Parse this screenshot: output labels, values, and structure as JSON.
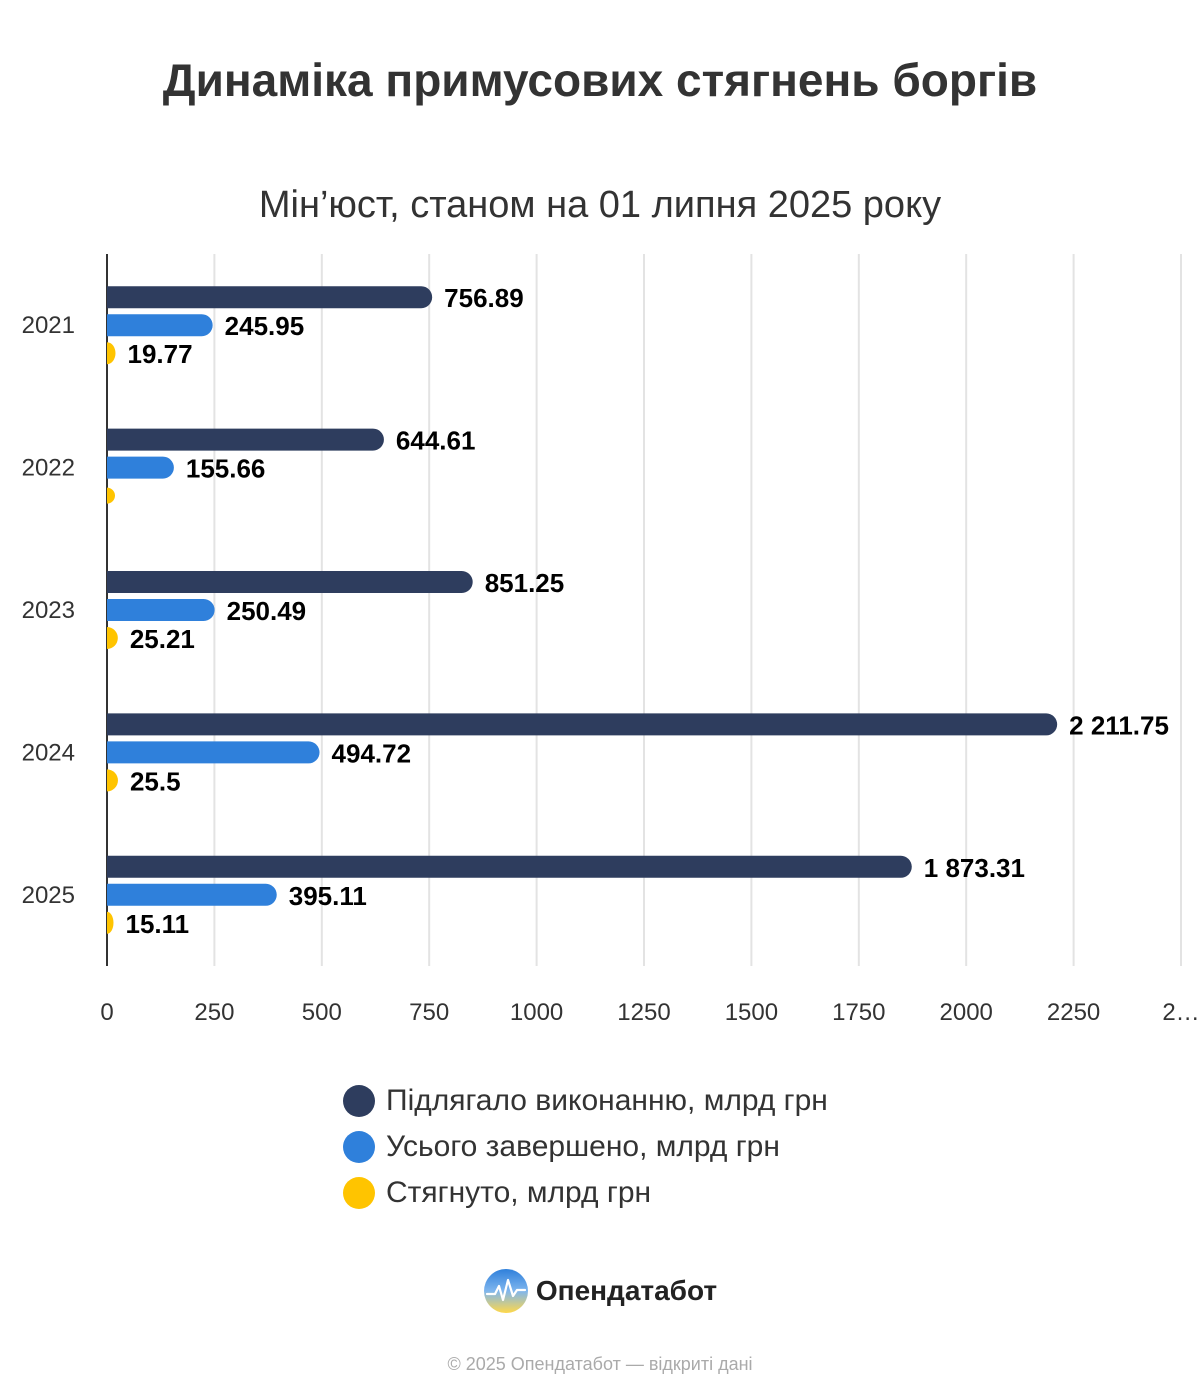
{
  "title": "Динаміка примусових стягнень боргів",
  "subtitle": "Мін’юст, станом на 01 липня 2025 року",
  "chart_data": {
    "type": "bar",
    "orientation": "horizontal",
    "title": "Динаміка примусових стягнень боргів",
    "subtitle": "Мін’юст, станом на 01 липня 2025 року",
    "categories": [
      "2021",
      "2022",
      "2023",
      "2024",
      "2025"
    ],
    "series": [
      {
        "name": "Підлягало виконанню, млрд грн",
        "color": "#2e3d5e",
        "values": [
          756.89,
          644.61,
          851.25,
          2211.75,
          1873.31
        ],
        "labels": [
          "756.89",
          "644.61",
          "851.25",
          "2 211.75",
          "1 873.31"
        ]
      },
      {
        "name": "Усього завершено, млрд грн",
        "color": "#2f80db",
        "values": [
          245.95,
          155.66,
          250.49,
          494.72,
          395.11
        ],
        "labels": [
          "245.95",
          "155.66",
          "250.49",
          "494.72",
          "395.11"
        ]
      },
      {
        "name": "Стягнуто, млрд грн",
        "color": "#ffc400",
        "values": [
          19.77,
          null,
          25.21,
          25.5,
          15.11
        ],
        "labels": [
          "19.77",
          "",
          "25.21",
          "25.5",
          "15.11"
        ]
      }
    ],
    "x_ticks": [
      "0",
      "250",
      "500",
      "750",
      "1000",
      "1250",
      "1500",
      "1750",
      "2000",
      "2250",
      "2…"
    ],
    "xlim": [
      0,
      2500
    ],
    "grid": true,
    "legend_position": "bottom"
  },
  "legend": [
    {
      "label": "Підлягало виконанню, млрд грн",
      "color": "#2e3d5e"
    },
    {
      "label": "Усього завершено, млрд грн",
      "color": "#2f80db"
    },
    {
      "label": "Стягнуто, млрд грн",
      "color": "#ffc400"
    }
  ],
  "brand": {
    "name": "Опендатабот",
    "logo_icon": "opendatabot-logo-icon"
  },
  "footer": "© 2025 Опендатабот — відкриті дані"
}
